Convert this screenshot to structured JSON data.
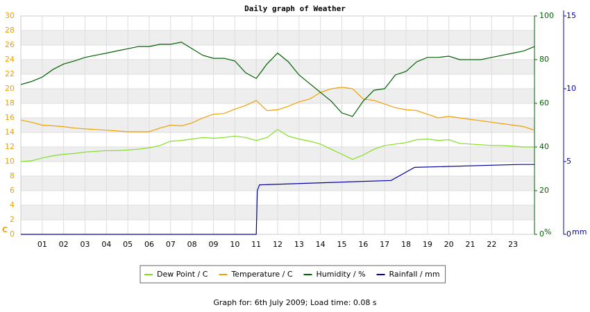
{
  "chart_data": {
    "type": "line",
    "title": "Daily graph of Weather",
    "footer": "Graph for: 6th July 2009; Load time: 0.08 s",
    "ylabel": "C",
    "y2label": "%",
    "y3label": "mm",
    "y_color": "#f0a000",
    "y2_color": "#006000",
    "y3_color": "#0000a0",
    "grid": true,
    "xlim": [
      0,
      24
    ],
    "xticks": [
      {
        "value": 1,
        "label": "01"
      },
      {
        "value": 2,
        "label": "02"
      },
      {
        "value": 3,
        "label": "03"
      },
      {
        "value": 4,
        "label": "04"
      },
      {
        "value": 5,
        "label": "05"
      },
      {
        "value": 6,
        "label": "06"
      },
      {
        "value": 7,
        "label": "07"
      },
      {
        "value": 8,
        "label": "08"
      },
      {
        "value": 9,
        "label": "09"
      },
      10,
      11,
      12,
      13,
      14,
      15,
      16,
      17,
      18,
      19,
      20,
      21,
      22,
      23
    ],
    "ylim": [
      0,
      30
    ],
    "yticks": [
      0,
      2,
      4,
      6,
      8,
      10,
      12,
      14,
      16,
      18,
      20,
      22,
      24,
      26,
      28,
      30
    ],
    "y2lim": [
      0,
      100
    ],
    "y2ticks": [
      0,
      20,
      40,
      60,
      80,
      100
    ],
    "y3lim": [
      0,
      15
    ],
    "y3ticks": [
      0,
      5,
      10,
      15
    ],
    "x": [
      0,
      0.5,
      1,
      1.5,
      2,
      2.5,
      3,
      3.5,
      4,
      4.5,
      5,
      5.5,
      6,
      6.5,
      7,
      7.5,
      8,
      8.5,
      9,
      9.5,
      10,
      10.5,
      11,
      11.5,
      12,
      12.5,
      13,
      13.5,
      14,
      14.5,
      15,
      15.5,
      16,
      16.5,
      17,
      17.5,
      18,
      18.5,
      19,
      19.5,
      20,
      20.5,
      21,
      21.5,
      22,
      22.5,
      23,
      23.5,
      24
    ],
    "series": [
      {
        "name": "Dew Point / C",
        "color": "#80e020",
        "values": [
          10.0,
          10.1,
          10.5,
          10.8,
          11.0,
          11.1,
          11.3,
          11.4,
          11.5,
          11.5,
          11.6,
          11.7,
          11.9,
          12.2,
          12.8,
          12.9,
          13.1,
          13.3,
          13.2,
          13.3,
          13.5,
          13.3,
          12.9,
          13.3,
          14.4,
          13.5,
          13.1,
          12.8,
          12.4,
          11.7,
          11.0,
          10.3,
          10.9,
          11.7,
          12.2,
          12.4,
          12.6,
          13.0,
          13.1,
          12.9,
          13.0,
          12.5,
          12.4,
          12.3,
          12.2,
          12.2,
          12.1,
          12.0,
          12.0
        ]
      },
      {
        "name": "Temperature / C",
        "color": "#f0a000",
        "values": [
          15.7,
          15.4,
          15.0,
          14.9,
          14.8,
          14.6,
          14.5,
          14.4,
          14.3,
          14.2,
          14.1,
          14.1,
          14.1,
          14.6,
          15.0,
          14.9,
          15.3,
          16.0,
          16.5,
          16.6,
          17.2,
          17.7,
          18.4,
          17.0,
          17.1,
          17.6,
          18.2,
          18.6,
          19.5,
          20.0,
          20.2,
          20.0,
          18.6,
          18.4,
          17.9,
          17.4,
          17.1,
          17.0,
          16.5,
          16.0,
          16.2,
          16.0,
          15.8,
          15.6,
          15.4,
          15.2,
          15.0,
          14.8,
          14.3
        ]
      },
      {
        "name": "Humidity / %",
        "color": "#006000",
        "axis": "y2",
        "values": [
          68.6,
          70,
          72,
          75.5,
          78,
          79.4,
          81,
          82,
          83,
          84,
          85,
          86,
          86,
          87,
          87,
          88,
          85,
          82,
          80.6,
          80.6,
          79.4,
          74,
          71.4,
          78,
          83,
          79,
          73,
          69,
          65,
          61,
          55.6,
          54,
          61,
          66,
          66.7,
          73,
          74.6,
          79,
          81,
          81,
          81.6,
          80,
          80,
          80,
          81,
          82,
          83,
          84,
          86
        ]
      },
      {
        "name": "Rainfall / mm",
        "color": "#0000a0",
        "axis": "y3",
        "x": [
          0,
          11.0,
          11.05,
          11.15,
          17.3,
          18.4,
          23.3,
          24
        ],
        "values": [
          0,
          0,
          3.0,
          3.4,
          3.7,
          4.6,
          4.8,
          4.8
        ]
      }
    ]
  }
}
